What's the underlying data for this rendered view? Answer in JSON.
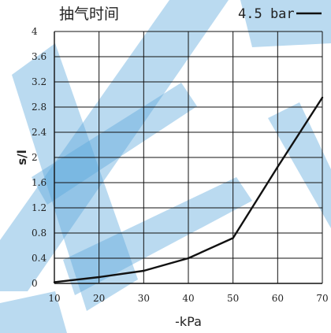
{
  "chart_data": {
    "type": "line",
    "title": "抽气时间",
    "legend": {
      "label": "4.5 bar",
      "placement": "top-right"
    },
    "xlabel": "-kPa",
    "ylabel": "s/l",
    "xlim": [
      10,
      70
    ],
    "ylim": [
      0,
      4
    ],
    "x_ticks": [
      "10",
      "20",
      "30",
      "40",
      "50",
      "60",
      "70"
    ],
    "y_ticks": [
      "0",
      "0.4",
      "0.8",
      "1.2",
      "1.6",
      "2",
      "2.4",
      "2.8",
      "3.2",
      "3.6",
      "4"
    ],
    "grid": true,
    "series": [
      {
        "name": "4.5 bar",
        "color": "#111111",
        "x": [
          10,
          20,
          30,
          40,
          50,
          60,
          70
        ],
        "y": [
          0.02,
          0.1,
          0.2,
          0.4,
          0.72,
          1.85,
          2.95
        ]
      }
    ]
  }
}
